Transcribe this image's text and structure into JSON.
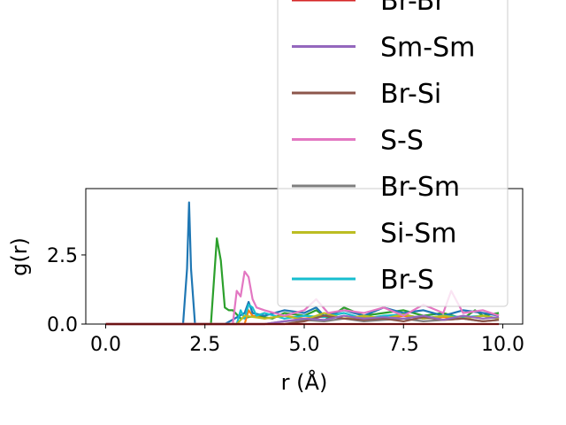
{
  "chart_data": {
    "type": "line",
    "xlabel": "r (Å)",
    "ylabel": "g(r)",
    "xlim": [
      -0.5,
      10.5
    ],
    "ylim": [
      0,
      4.9
    ],
    "xticks": [
      0.0,
      2.5,
      5.0,
      7.5,
      10.0
    ],
    "xtick_labels": [
      "0.0",
      "2.5",
      "5.0",
      "7.5",
      "10.0"
    ],
    "yticks": [
      0.0,
      2.5
    ],
    "ytick_labels": [
      "0.0",
      "2.5"
    ],
    "grid": false,
    "legend_position": "top-right",
    "series": [
      {
        "name": "Br-Br",
        "color": "#d62728",
        "x": [
          0,
          9.9
        ],
        "y": [
          0,
          0
        ]
      },
      {
        "name": "Sm-Sm",
        "color": "#9467bd",
        "x": [
          0,
          4.0,
          4.5,
          5.0,
          5.5,
          6.0,
          6.5,
          7.0,
          7.5,
          8.0,
          8.5,
          9.0,
          9.5,
          9.9
        ],
        "y": [
          0,
          0,
          0.1,
          0.2,
          0.15,
          0.3,
          0.2,
          0.25,
          0.2,
          0.3,
          0.15,
          0.3,
          0.2,
          0.25
        ]
      },
      {
        "name": "Br-Si",
        "color": "#8c564b",
        "x": [
          0,
          4.5,
          5.0,
          5.5,
          6.0,
          6.5,
          7.0,
          7.5,
          8.0,
          8.5,
          9.0,
          9.5,
          9.9
        ],
        "y": [
          0,
          0,
          0.1,
          0.3,
          0.2,
          0.15,
          0.2,
          0.1,
          0.25,
          0.15,
          0.2,
          0.1,
          0.15
        ]
      },
      {
        "name": "S-S",
        "color": "#e377c2",
        "x": [
          0,
          3.2,
          3.3,
          3.4,
          3.5,
          3.6,
          3.7,
          3.8,
          4.0,
          4.5,
          5.0,
          5.3,
          5.6,
          6.0,
          6.5,
          7.0,
          7.5,
          8.0,
          8.5,
          8.7,
          9.0,
          9.5,
          9.9
        ],
        "y": [
          0,
          0,
          1.2,
          1.0,
          1.9,
          1.7,
          0.9,
          0.6,
          0.5,
          0.3,
          0.5,
          0.9,
          0.4,
          0.5,
          0.4,
          0.6,
          0.3,
          0.7,
          0.4,
          1.2,
          0.4,
          0.5,
          0.3
        ]
      },
      {
        "name": "Br-Sm",
        "color": "#7f7f7f",
        "x": [
          0,
          4.0,
          4.5,
          5.0,
          5.5,
          6.0,
          6.5,
          7.0,
          7.5,
          8.0,
          8.5,
          9.0,
          9.5,
          9.9
        ],
        "y": [
          0,
          0,
          0.1,
          0.15,
          0.1,
          0.2,
          0.1,
          0.15,
          0.2,
          0.1,
          0.15,
          0.2,
          0.1,
          0.15
        ]
      },
      {
        "name": "Si-Sm",
        "color": "#bcbd22",
        "x": [
          0,
          3.3,
          3.5,
          4.0,
          4.5,
          5.0,
          5.5,
          6.0,
          6.5,
          7.0,
          7.5,
          8.0,
          8.5,
          9.0,
          9.5,
          9.9
        ],
        "y": [
          0,
          0,
          0.3,
          0.2,
          0.3,
          0.15,
          0.4,
          0.2,
          0.3,
          0.2,
          0.35,
          0.2,
          0.3,
          0.2,
          0.3,
          0.2
        ]
      },
      {
        "name": "Br-S",
        "color": "#17becf",
        "x": [
          0,
          3.3,
          3.4,
          3.5,
          3.6,
          3.7,
          3.8,
          4.0,
          4.5,
          5.0,
          5.5,
          6.0,
          6.5,
          7.0,
          7.5,
          8.0,
          8.5,
          9.0,
          9.5,
          9.9
        ],
        "y": [
          0,
          0,
          0.5,
          0.2,
          0.7,
          0.6,
          0.3,
          0.4,
          0.2,
          0.3,
          0.25,
          0.4,
          0.2,
          0.3,
          0.35,
          0.2,
          0.3,
          0.25,
          0.3,
          0.2
        ]
      },
      {
        "name": "",
        "color": "#1f77b4",
        "x": [
          0,
          1.95,
          2.05,
          2.1,
          2.15,
          2.25,
          3.0,
          3.5,
          3.6,
          3.7,
          4.0,
          4.5,
          5.0,
          5.3,
          5.5,
          6.0,
          6.5,
          7.0,
          7.5,
          8.0,
          8.5,
          9.0,
          9.5,
          9.9
        ],
        "y": [
          0,
          0,
          2.0,
          4.4,
          2.0,
          0,
          0,
          0.4,
          0.8,
          0.4,
          0.3,
          0.5,
          0.4,
          0.6,
          0.3,
          0.5,
          0.3,
          0.6,
          0.4,
          0.5,
          0.3,
          0.5,
          0.4,
          0.3
        ]
      },
      {
        "name": "",
        "color": "#ff7f0e",
        "x": [
          0,
          3.5,
          3.6,
          3.7,
          4.0,
          4.5,
          5.0,
          5.5,
          6.0,
          6.5,
          7.0,
          7.5,
          8.0,
          8.5,
          9.0,
          9.5,
          9.9
        ],
        "y": [
          0,
          0,
          0.5,
          0.3,
          0.2,
          0.3,
          0.2,
          0.3,
          0.2,
          0.25,
          0.2,
          0.3,
          0.2,
          0.25,
          0.2,
          0.3,
          0.2
        ]
      },
      {
        "name": "",
        "color": "#2ca02c",
        "x": [
          0,
          2.65,
          2.8,
          2.9,
          3.0,
          3.1,
          3.2,
          3.4,
          3.8,
          4.2,
          4.5,
          5.0,
          5.3,
          5.6,
          6.0,
          6.5,
          7.0,
          7.5,
          8.0,
          8.5,
          9.0,
          9.3,
          9.5,
          9.9
        ],
        "y": [
          0,
          0,
          3.1,
          2.3,
          0.6,
          0.5,
          0.5,
          0.2,
          0.3,
          0.2,
          0.4,
          0.3,
          0.5,
          0.2,
          0.6,
          0.3,
          0.4,
          0.5,
          0.3,
          0.4,
          0.2,
          0.5,
          0.3,
          0.4
        ]
      }
    ]
  }
}
